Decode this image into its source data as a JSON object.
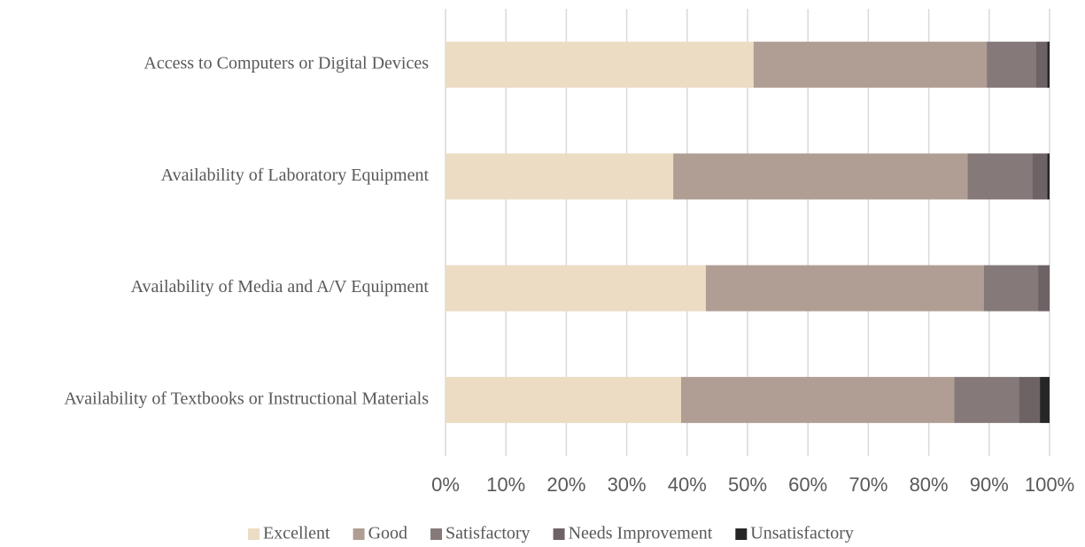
{
  "chart_data": {
    "type": "stacked_bar_horizontal",
    "categories": [
      "Access to Computers or Digital Devices",
      "Availability of Laboratory Equipment",
      "Availability of Media and A/V Equipment",
      "Availability of Textbooks or Instructional Materials"
    ],
    "series": [
      {
        "name": "Excellent",
        "color": "#ebdcc3",
        "values": [
          51.0,
          37.7,
          43.1,
          39.0
        ]
      },
      {
        "name": "Good",
        "color": "#b09e94",
        "values": [
          38.6,
          48.7,
          46.0,
          45.2
        ]
      },
      {
        "name": "Satisfactory",
        "color": "#857a79",
        "values": [
          8.2,
          10.7,
          9.0,
          10.7
        ]
      },
      {
        "name": "Needs Improvement",
        "color": "#6d6264",
        "values": [
          1.8,
          2.5,
          1.9,
          3.5
        ]
      },
      {
        "name": "Unsatisfactory",
        "color": "#262626",
        "values": [
          0.4,
          0.4,
          0,
          1.6
        ]
      }
    ],
    "xlim": [
      0,
      100
    ],
    "xticks": [
      {
        "value": 0,
        "label": "0%"
      },
      {
        "value": 10,
        "label": "10%"
      },
      {
        "value": 20,
        "label": "20%"
      },
      {
        "value": 30,
        "label": "30%"
      },
      {
        "value": 40,
        "label": "40%"
      },
      {
        "value": 50,
        "label": "50%"
      },
      {
        "value": 60,
        "label": "60%"
      },
      {
        "value": 70,
        "label": "70%"
      },
      {
        "value": 80,
        "label": "80%"
      },
      {
        "value": 90,
        "label": "90%"
      },
      {
        "value": 100,
        "label": "100%"
      }
    ],
    "grid": true,
    "legend": "bottom"
  }
}
